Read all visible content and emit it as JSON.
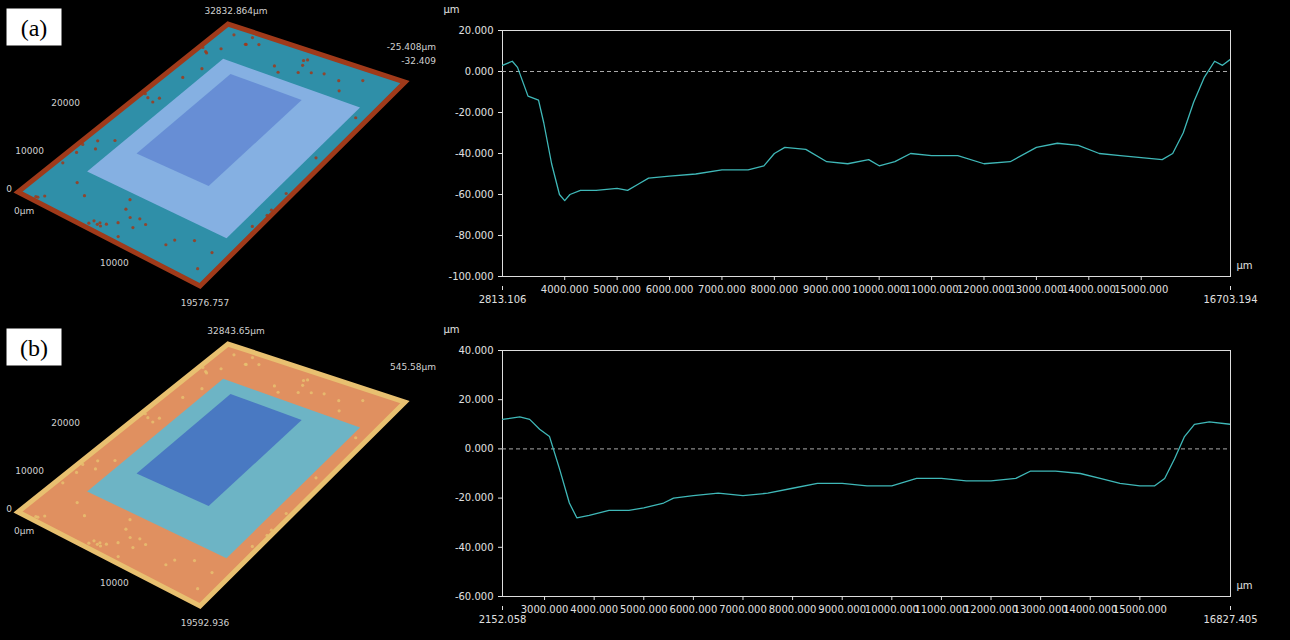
{
  "chart_data": [
    {
      "type": "surface",
      "title": "(a)",
      "annotations": [
        "32832.864µm",
        "20000",
        "10000",
        "0",
        "0µm",
        "10000",
        "19576.757",
        "-25.408µm",
        "-32.409"
      ],
      "colors": [
        "#2f8fa8",
        "#8fb4e8",
        "#5a80d0",
        "#a03a1a"
      ]
    },
    {
      "type": "line",
      "x": [
        2813.106,
        3000,
        3100,
        3300,
        3500,
        3600,
        3750,
        3900,
        4000,
        4100,
        4300,
        4600,
        5000,
        5200,
        5400,
        5600,
        6000,
        6500,
        7000,
        7500,
        7800,
        8000,
        8200,
        8600,
        9000,
        9400,
        9800,
        10000,
        10300,
        10600,
        11000,
        11500,
        12000,
        12500,
        13000,
        13400,
        13800,
        14200,
        14600,
        15000,
        15400,
        15600,
        15800,
        16000,
        16200,
        16400,
        16550,
        16703.194
      ],
      "values": [
        3,
        5,
        2,
        -12,
        -14,
        -25,
        -45,
        -60,
        -63,
        -60,
        -58,
        -58,
        -57,
        -58,
        -55,
        -52,
        -51,
        -50,
        -48,
        -48,
        -46,
        -40,
        -37,
        -38,
        -44,
        -45,
        -43,
        -46,
        -44,
        -40,
        -41,
        -41,
        -45,
        -44,
        -37,
        -35,
        -36,
        -40,
        -41,
        -42,
        -43,
        -40,
        -30,
        -15,
        -3,
        5,
        3,
        6
      ],
      "color": "#3fb8b8",
      "xlabel": "µm",
      "ylabel": "µm",
      "xlim": [
        2813.106,
        16703.194
      ],
      "ylim": [
        -100,
        20
      ],
      "xticks": [
        2813.106,
        {
          "value": 4000,
          "label": "4000.000"
        },
        {
          "value": 5000,
          "label": "5000.000"
        },
        {
          "value": 6000,
          "label": "6000.000"
        },
        {
          "value": 7000,
          "label": "7000.000"
        },
        {
          "value": 8000,
          "label": "8000.000"
        },
        {
          "value": 9000,
          "label": "9000.000"
        },
        {
          "value": 10000,
          "label": "10000.000"
        },
        {
          "value": 11000,
          "label": "11000.000"
        },
        {
          "value": 12000,
          "label": "12000.000"
        },
        {
          "value": 13000,
          "label": "13000.000"
        },
        {
          "value": 14000,
          "label": "14000.000"
        },
        {
          "value": 15000,
          "label": "15000.000"
        },
        16703.194
      ],
      "yticks": [
        {
          "value": -100,
          "label": "-100.000"
        },
        {
          "value": -80,
          "label": "-80.000"
        },
        {
          "value": -60,
          "label": "-60.000"
        },
        {
          "value": -40,
          "label": "-40.000"
        },
        {
          "value": -20,
          "label": "-20.000"
        },
        {
          "value": 0,
          "label": "0.000"
        },
        {
          "value": 20,
          "label": "20.000"
        }
      ],
      "hline": 0
    },
    {
      "type": "surface",
      "title": "(b)",
      "annotations": [
        "32843.65µm",
        "20000",
        "10000",
        "0",
        "0µm",
        "10000",
        "19592.936",
        "545.58µm"
      ],
      "colors": [
        "#e09060",
        "#60b8d0",
        "#3a60c0",
        "#e8c070"
      ]
    },
    {
      "type": "line",
      "x": [
        2152.058,
        2500,
        2700,
        2900,
        3100,
        3300,
        3500,
        3650,
        3900,
        4300,
        4700,
        5000,
        5400,
        5600,
        6000,
        6500,
        7000,
        7500,
        8000,
        8500,
        9000,
        9500,
        10000,
        10500,
        11000,
        11500,
        12000,
        12500,
        12800,
        13300,
        13800,
        14200,
        14600,
        15000,
        15300,
        15500,
        15700,
        15900,
        16100,
        16400,
        16827.405
      ],
      "values": [
        12,
        13,
        12,
        8,
        5,
        -8,
        -22,
        -28,
        -27,
        -25,
        -25,
        -24,
        -22,
        -20,
        -19,
        -18,
        -19,
        -18,
        -16,
        -14,
        -14,
        -15,
        -15,
        -12,
        -12,
        -13,
        -13,
        -12,
        -9,
        -9,
        -10,
        -12,
        -14,
        -15,
        -15,
        -12,
        -4,
        5,
        10,
        11,
        10
      ],
      "color": "#3fb8b8",
      "xlabel": "µm",
      "ylabel": "µm",
      "xlim": [
        2152.058,
        16827.405
      ],
      "ylim": [
        -60,
        40
      ],
      "xticks": [
        2152.058,
        {
          "value": 3000,
          "label": "3000.000"
        },
        {
          "value": 4000,
          "label": "4000.000"
        },
        {
          "value": 5000,
          "label": "5000.000"
        },
        {
          "value": 6000,
          "label": "6000.000"
        },
        {
          "value": 7000,
          "label": "7000.000"
        },
        {
          "value": 8000,
          "label": "8000.000"
        },
        {
          "value": 9000,
          "label": "9000.000"
        },
        {
          "value": 10000,
          "label": "10000.000"
        },
        {
          "value": 11000,
          "label": "11000.000"
        },
        {
          "value": 12000,
          "label": "12000.000"
        },
        {
          "value": 13000,
          "label": "13000.000"
        },
        {
          "value": 14000,
          "label": "14000.000"
        },
        {
          "value": 15000,
          "label": "15000.000"
        },
        16827.405
      ],
      "yticks": [
        {
          "value": -60,
          "label": "-60.000"
        },
        {
          "value": -40,
          "label": "-40.000"
        },
        {
          "value": -20,
          "label": "-20.000"
        },
        {
          "value": 0,
          "label": "0.000"
        },
        {
          "value": 20,
          "label": "20.000"
        },
        {
          "value": 40,
          "label": "40.000"
        }
      ],
      "hline": 0
    }
  ]
}
